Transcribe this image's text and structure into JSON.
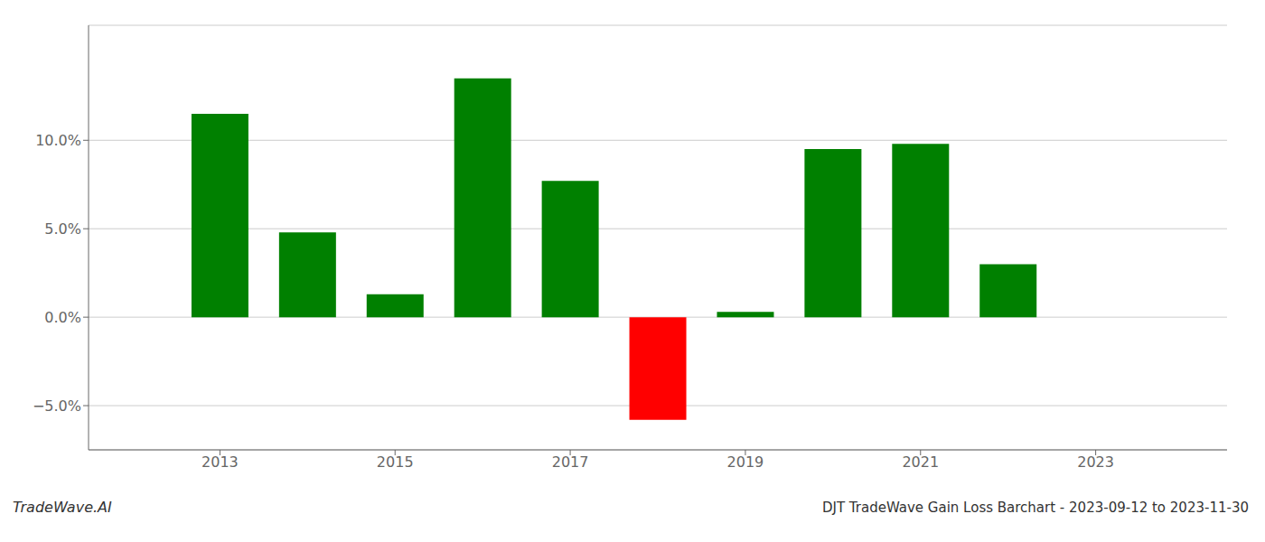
{
  "chart_data": {
    "type": "bar",
    "title": "DJT TradeWave Gain Loss Barchart - 2023-09-12 to 2023-11-30",
    "annotations": [
      "TradeWave.AI"
    ],
    "x": [
      2013,
      2014,
      2015,
      2016,
      2017,
      2018,
      2019,
      2020,
      2021,
      2022
    ],
    "values": [
      0.115,
      0.048,
      0.013,
      0.135,
      0.077,
      -0.058,
      0.003,
      0.095,
      0.098,
      0.03
    ],
    "colors": [
      "#008000",
      "#008000",
      "#008000",
      "#008000",
      "#008000",
      "#ff0000",
      "#008000",
      "#008000",
      "#008000",
      "#008000"
    ],
    "xlim": [
      2011.5,
      2024.5
    ],
    "xticks": [
      2013,
      2015,
      2017,
      2019,
      2021,
      2023
    ],
    "ylim": [
      -0.075,
      0.165
    ],
    "yticks": [
      {
        "value": -0.05,
        "label": "−5.0%"
      },
      {
        "value": 0.0,
        "label": "0.0%"
      },
      {
        "value": 0.05,
        "label": "5.0%"
      },
      {
        "value": 0.1,
        "label": "10.0%"
      }
    ],
    "grid": true
  }
}
